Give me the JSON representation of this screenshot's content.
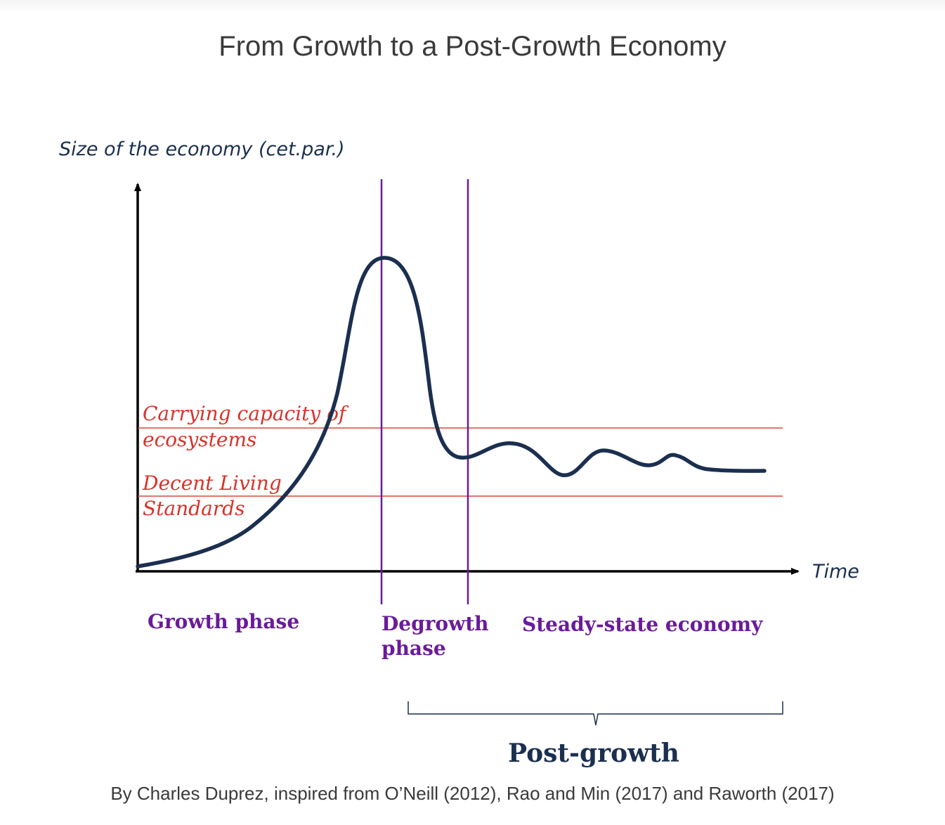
{
  "title": "From Growth to a Post-Growth Economy",
  "caption": "By Charles Duprez, inspired from O’Neill (2012), Rao and Min (2017) and Raworth (2017)",
  "diagram": {
    "y_axis_label": "Size of the economy (cet.par.)",
    "x_axis_label": "Time",
    "thresholds": {
      "carrying_capacity": [
        "Carrying capacity of",
        "ecosystems"
      ],
      "decent_living": [
        "Decent Living",
        "Standards"
      ]
    },
    "phases": {
      "growth": [
        "Growth phase"
      ],
      "degrowth": [
        "Degrowth",
        "phase"
      ],
      "steady_state": [
        "Steady-state economy"
      ]
    },
    "post_growth_label": "Post-growth",
    "colors": {
      "curve": "#1b2f4f",
      "threshold": "#d94a3a",
      "threshold_text": "#d8322a",
      "phase_line": "#6a1b9a",
      "phase_text": "#6a1b9a",
      "axis": "#000000",
      "axis_label": "#1b2f4f",
      "post_growth": "#1b2f4f"
    }
  }
}
